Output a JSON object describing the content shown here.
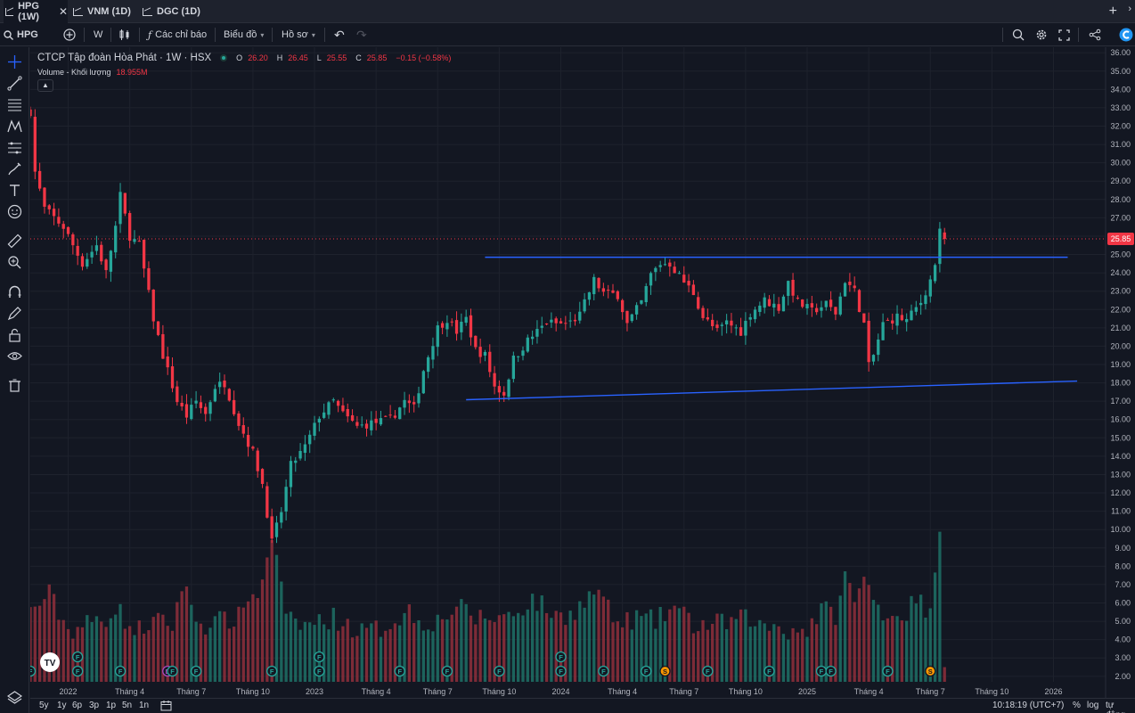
{
  "tabs": [
    {
      "label": "HPG (1W)",
      "active": true,
      "close": "✕"
    },
    {
      "label": "VNM (1D)",
      "active": false
    },
    {
      "label": "DGC (1D)",
      "active": false
    }
  ],
  "toolbar": {
    "symbol": "HPG",
    "interval": "W",
    "indicators_label": "Các chỉ báo",
    "chart_type_label": "Biểu đồ",
    "profile_label": "Hồ sơ"
  },
  "legend": {
    "title": "CTCP Tập đoàn Hòa Phát · 1W · HSX",
    "ohlc": [
      {
        "k": "O",
        "v": "26.20"
      },
      {
        "k": "H",
        "v": "26.45"
      },
      {
        "k": "L",
        "v": "25.55"
      },
      {
        "k": "C",
        "v": "25.85"
      }
    ],
    "change": "−0.15 (−0.58%)",
    "volume_label": "Volume - Khối lượng",
    "volume_value": "18.955M"
  },
  "bottom": {
    "ranges": [
      "5y",
      "1y",
      "6p",
      "3p",
      "1p",
      "5n",
      "1n"
    ],
    "time": "10:18:19 (UTC+7)",
    "percent": "%",
    "log": "log",
    "auto": "tự động"
  },
  "colors": {
    "up": "#26a69a",
    "down": "#f23645",
    "up_volume": "#1e6b63",
    "down_volume": "#8a2e3a",
    "trendline": "#2962ff",
    "background": "#131722",
    "grid": "#1e222d"
  },
  "chart_data": {
    "type": "candlestick",
    "y_ticks": [
      "36.00",
      "35.00",
      "34.00",
      "33.00",
      "32.00",
      "31.00",
      "30.00",
      "29.00",
      "28.00",
      "27.00",
      "26.00",
      "25.00",
      "24.00",
      "23.00",
      "22.00",
      "21.00",
      "20.00",
      "19.00",
      "18.00",
      "17.00",
      "16.00",
      "15.00",
      "14.00",
      "13.00",
      "12.00",
      "11.00",
      "10.00",
      "9.00",
      "8.00",
      "7.00",
      "6.00",
      "5.00",
      "4.00",
      "3.00",
      "2.00"
    ],
    "ylim": [
      1.7,
      36.3
    ],
    "x_labels": [
      {
        "t": 0,
        "label": "2022"
      },
      {
        "t": 13,
        "label": "Tháng 4"
      },
      {
        "t": 26,
        "label": "Tháng 7"
      },
      {
        "t": 39,
        "label": "Tháng 10"
      },
      {
        "t": 52,
        "label": "2023"
      },
      {
        "t": 65,
        "label": "Tháng 4"
      },
      {
        "t": 78,
        "label": "Tháng 7"
      },
      {
        "t": 91,
        "label": "Tháng 10"
      },
      {
        "t": 104,
        "label": "2024"
      },
      {
        "t": 117,
        "label": "Tháng 4"
      },
      {
        "t": 130,
        "label": "Tháng 7"
      },
      {
        "t": 143,
        "label": "Tháng 10"
      },
      {
        "t": 156,
        "label": "2025"
      },
      {
        "t": 169,
        "label": "Tháng 4"
      },
      {
        "t": 182,
        "label": "Tháng 7"
      },
      {
        "t": 195,
        "label": "Tháng 10"
      },
      {
        "t": 208,
        "label": "2026"
      }
    ],
    "x_range": [
      -8,
      219
    ],
    "last_price": "25.85",
    "volume_axis_top": 5.0,
    "volume_max": 24,
    "anchors": [
      [
        -8,
        32.8
      ],
      [
        -7,
        29.5
      ],
      [
        -5,
        27.5
      ],
      [
        -3,
        27
      ],
      [
        -1,
        26.5
      ],
      [
        0,
        26
      ],
      [
        3,
        24.5
      ],
      [
        6,
        25.5
      ],
      [
        8,
        24
      ],
      [
        10,
        26.5
      ],
      [
        11,
        28.2
      ],
      [
        13,
        26
      ],
      [
        15,
        25.5
      ],
      [
        18,
        21.5
      ],
      [
        20,
        19.5
      ],
      [
        23,
        17
      ],
      [
        25,
        16.2
      ],
      [
        27,
        17
      ],
      [
        29,
        16.3
      ],
      [
        31,
        17.8
      ],
      [
        33,
        18
      ],
      [
        36,
        15.8
      ],
      [
        39,
        14.2
      ],
      [
        41,
        12.5
      ],
      [
        43,
        9.3
      ],
      [
        45,
        11
      ],
      [
        47,
        13.5
      ],
      [
        50,
        14.5
      ],
      [
        53,
        16.2
      ],
      [
        56,
        17
      ],
      [
        58,
        16.3
      ],
      [
        61,
        15.6
      ],
      [
        64,
        15.8
      ],
      [
        68,
        16
      ],
      [
        71,
        17
      ],
      [
        73,
        16.6
      ],
      [
        75,
        18.7
      ],
      [
        78,
        21
      ],
      [
        80,
        21.5
      ],
      [
        82,
        20.8
      ],
      [
        84,
        21.5
      ],
      [
        86,
        19.8
      ],
      [
        88,
        19.5
      ],
      [
        90,
        17.8
      ],
      [
        92,
        17.4
      ],
      [
        94,
        19.3
      ],
      [
        97,
        20.3
      ],
      [
        101,
        21.3
      ],
      [
        104,
        21.2
      ],
      [
        106,
        21.3
      ],
      [
        108,
        21.7
      ],
      [
        111,
        23.6
      ],
      [
        113,
        22.9
      ],
      [
        116,
        22.8
      ],
      [
        118,
        21.2
      ],
      [
        121,
        22.4
      ],
      [
        123,
        23.9
      ],
      [
        125,
        24.5
      ],
      [
        127,
        24.5
      ],
      [
        130,
        23.5
      ],
      [
        132,
        22.9
      ],
      [
        134,
        21.6
      ],
      [
        137,
        20.8
      ],
      [
        139,
        21.3
      ],
      [
        142,
        20.8
      ],
      [
        144,
        21.8
      ],
      [
        147,
        22.5
      ],
      [
        150,
        22.1
      ],
      [
        152,
        23.5
      ],
      [
        154,
        22.4
      ],
      [
        157,
        21.9
      ],
      [
        160,
        22.3
      ],
      [
        162,
        21.8
      ],
      [
        164,
        23.6
      ],
      [
        166,
        23
      ],
      [
        168,
        21.2
      ],
      [
        169,
        18.9
      ],
      [
        170,
        19.5
      ],
      [
        172,
        21.2
      ],
      [
        175,
        21.6
      ],
      [
        177,
        21.4
      ],
      [
        180,
        22.4
      ],
      [
        182,
        23.6
      ],
      [
        183,
        24.5
      ],
      [
        184,
        26.2
      ],
      [
        185,
        25.85
      ]
    ],
    "bearish_at": [
      185
    ],
    "volume_anchors": [
      [
        -8,
        5.5
      ],
      [
        -4,
        6.5
      ],
      [
        0,
        4.5
      ],
      [
        8,
        5.2
      ],
      [
        10,
        5.8
      ],
      [
        14,
        4.4
      ],
      [
        18,
        5
      ],
      [
        22,
        4.8
      ],
      [
        24,
        7
      ],
      [
        28,
        4.8
      ],
      [
        36,
        5.2
      ],
      [
        38,
        6.5
      ],
      [
        40,
        6.2
      ],
      [
        42,
        8.8
      ],
      [
        43,
        9
      ],
      [
        44,
        8.8
      ],
      [
        46,
        5
      ],
      [
        50,
        4.8
      ],
      [
        56,
        5.2
      ],
      [
        62,
        4.4
      ],
      [
        66,
        4.6
      ],
      [
        72,
        5.6
      ],
      [
        74,
        5
      ],
      [
        78,
        5
      ],
      [
        82,
        5.8
      ],
      [
        86,
        5.2
      ],
      [
        90,
        5.2
      ],
      [
        94,
        5.4
      ],
      [
        98,
        6.2
      ],
      [
        102,
        5.5
      ],
      [
        104,
        5.2
      ],
      [
        108,
        5.8
      ],
      [
        112,
        6.8
      ],
      [
        114,
        5.6
      ],
      [
        116,
        4.8
      ],
      [
        120,
        5.2
      ],
      [
        124,
        5
      ],
      [
        128,
        5.8
      ],
      [
        132,
        4.8
      ],
      [
        136,
        4.8
      ],
      [
        140,
        5
      ],
      [
        144,
        5.2
      ],
      [
        146,
        4.7
      ],
      [
        150,
        4.8
      ],
      [
        152,
        4.5
      ],
      [
        156,
        4.6
      ],
      [
        159,
        5.6
      ],
      [
        162,
        5.4
      ],
      [
        164,
        7.4
      ],
      [
        166,
        6.2
      ],
      [
        168,
        7.2
      ],
      [
        170,
        6.2
      ],
      [
        172,
        5.6
      ],
      [
        174,
        5.4
      ],
      [
        176,
        5.3
      ],
      [
        178,
        5.9
      ],
      [
        180,
        6
      ],
      [
        182,
        5.3
      ],
      [
        183,
        8.2
      ],
      [
        184,
        10.4
      ],
      [
        185,
        2.5
      ]
    ],
    "trendlines": [
      {
        "t1": 88,
        "p1": 24.85,
        "t2": 211,
        "p2": 24.85
      },
      {
        "t1": 84,
        "p1": 17.08,
        "t2": 213,
        "p2": 18.1
      }
    ],
    "event_markers": [
      {
        "t": -8,
        "label": "F"
      },
      {
        "t": 2,
        "label": "F"
      },
      {
        "t": 11,
        "label": "F"
      },
      {
        "t": 21,
        "label": "D"
      },
      {
        "t": 22,
        "label": "F"
      },
      {
        "t": 27,
        "label": "F"
      },
      {
        "t": 43,
        "label": "F"
      },
      {
        "t": 53,
        "label": "F"
      },
      {
        "t": 70,
        "label": "F"
      },
      {
        "t": 80,
        "label": "F"
      },
      {
        "t": 91,
        "label": "F"
      },
      {
        "t": 104,
        "label": "F"
      },
      {
        "t": 113,
        "label": "F"
      },
      {
        "t": 122,
        "label": "F"
      },
      {
        "t": 126,
        "label": "S"
      },
      {
        "t": 135,
        "label": "F"
      },
      {
        "t": 148,
        "label": "F"
      },
      {
        "t": 159,
        "label": "F"
      },
      {
        "t": 161,
        "label": "F"
      },
      {
        "t": 173,
        "label": "F"
      },
      {
        "t": 182,
        "label": "S"
      }
    ],
    "event_markers_upper": [
      {
        "t": 2,
        "label": "F"
      },
      {
        "t": 53,
        "label": "F"
      },
      {
        "t": 104,
        "label": "F"
      }
    ]
  }
}
